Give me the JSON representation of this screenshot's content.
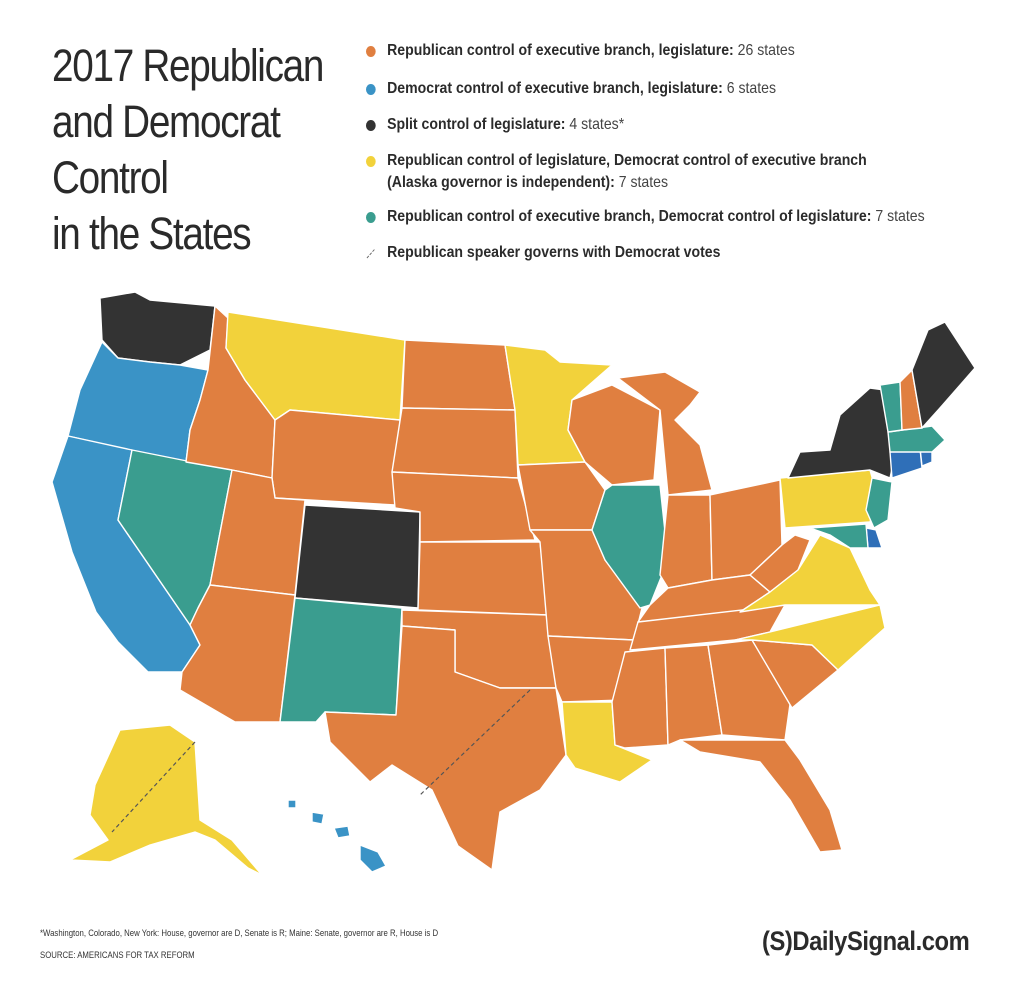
{
  "title_lines": [
    "2017 Republican",
    "and Democrat",
    "Control",
    "in the States"
  ],
  "legend": [
    {
      "label": "Republican control of executive branch, legislature:",
      "count": "26 states",
      "color": "#e07f40"
    },
    {
      "label": "Democrat control of executive branch, legislature:",
      "count": "6 states",
      "color": "#3a93c6"
    },
    {
      "label": "Split control of legislature:",
      "count": "4 states*",
      "color": "#333333"
    },
    {
      "label": "Republican control of legislature, Democrat control of executive branch",
      "label2": "(Alaska governor is independent):",
      "count": "7 states",
      "color": "#f2d23b"
    },
    {
      "label": "Republican control of executive branch, Democrat control of legislature:",
      "count": "7 states",
      "color": "#3a9d8f"
    },
    {
      "label": "Republican speaker governs with Democrat votes",
      "count": "",
      "color": "#666666"
    }
  ],
  "footnote": "*Washington, Colorado, New York: House, governor are D, Senate is R; Maine: Senate, governor are R, House is D",
  "source": "SOURCE: AMERICANS FOR TAX REFORM",
  "brand": "(S)DailySignal.com",
  "colors": {
    "republican": "#e07f40",
    "democrat": "#3a93c6",
    "split": "#333333",
    "rep_leg_dem_exec": "#f2d23b",
    "rep_exec_dem_leg": "#3a9d8f",
    "dem_dark": "#2f6fb8"
  },
  "states": {
    "republican": [
      "Idaho",
      "Utah",
      "Arizona",
      "Wyoming",
      "North Dakota",
      "South Dakota",
      "Nebraska",
      "Kansas",
      "Oklahoma",
      "Texas",
      "Iowa",
      "Missouri",
      "Arkansas",
      "Wisconsin",
      "Michigan",
      "Indiana",
      "Ohio",
      "Kentucky",
      "Tennessee",
      "Mississippi",
      "Alabama",
      "Georgia",
      "South Carolina",
      "Florida",
      "West Virginia",
      "New Hampshire"
    ],
    "democrat": [
      "Oregon",
      "California",
      "Hawaii",
      "Connecticut",
      "Rhode Island",
      "Delaware"
    ],
    "split": [
      "Washington",
      "Colorado",
      "New York",
      "Maine"
    ],
    "rep_leg_dem_exec": [
      "Montana",
      "Minnesota",
      "Louisiana",
      "Virginia",
      "North Carolina",
      "Pennsylvania",
      "Alaska"
    ],
    "rep_exec_dem_leg": [
      "Nevada",
      "New Mexico",
      "Illinois",
      "Vermont",
      "Massachusetts",
      "New Jersey",
      "Maryland"
    ],
    "speaker_with_democrat_votes": [
      "Alaska",
      "Texas"
    ]
  }
}
